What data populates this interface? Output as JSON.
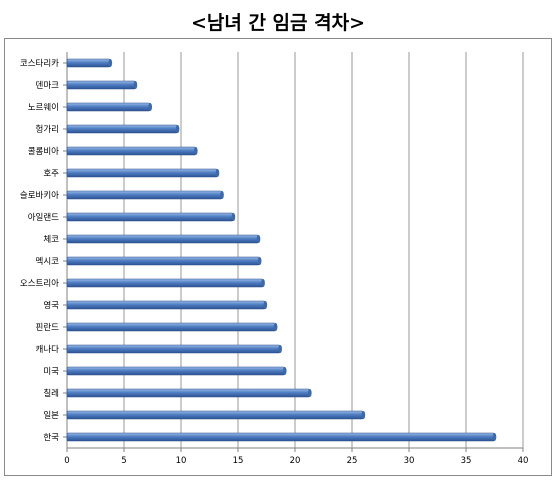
{
  "title": "<남녀 간 임금 격차>",
  "chart_data": {
    "type": "bar",
    "orientation": "horizontal",
    "title": "<남녀 간 임금 격차>",
    "xlabel": "",
    "ylabel": "",
    "xlim": [
      0,
      40
    ],
    "xticks": [
      0,
      5,
      10,
      15,
      20,
      25,
      30,
      35,
      40
    ],
    "grid": "vertical",
    "bar_color": "#4f7ec1",
    "categories": [
      "코스타리카",
      "덴마크",
      "노르웨이",
      "헝가리",
      "콜롬비아",
      "호주",
      "슬로바키아",
      "아일랜드",
      "체코",
      "멕시코",
      "오스트리아",
      "영국",
      "핀란드",
      "캐나다",
      "미국",
      "칠레",
      "일본",
      "한국"
    ],
    "values": [
      3.8,
      6.0,
      7.3,
      9.7,
      11.3,
      13.2,
      13.6,
      14.6,
      16.8,
      16.9,
      17.2,
      17.4,
      18.3,
      18.7,
      19.1,
      21.3,
      26.0,
      37.5
    ]
  }
}
